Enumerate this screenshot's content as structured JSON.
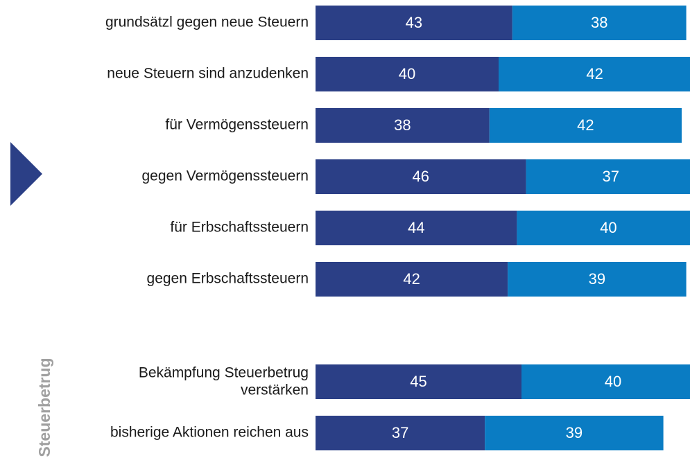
{
  "chart_data": {
    "type": "stacked-bar-horizontal",
    "categories": [
      "grundsätzl gegen neue Steuern",
      "neue Steuern sind anzudenken",
      "für Vermögenssteuern",
      "gegen Vermögenssteuern",
      "für Erbschaftssteuern",
      "gegen Erbschaftssteuern",
      "Bekämpfung Steuerbetrug\nverstärken",
      "bisherige Aktionen reichen aus"
    ],
    "series": [
      {
        "color": "#2b3f86",
        "values": [
          43,
          40,
          38,
          46,
          44,
          42,
          45,
          37
        ]
      },
      {
        "color": "#0a7cc3",
        "values": [
          38,
          42,
          42,
          37,
          40,
          39,
          40,
          39
        ]
      }
    ],
    "group_label": "Steuerbetrug"
  }
}
